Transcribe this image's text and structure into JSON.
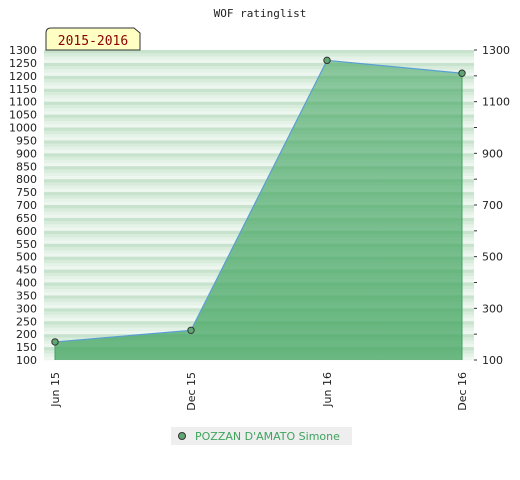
{
  "chart_data": {
    "type": "area",
    "title": "WOF ratinglist",
    "season_label": "2015-2016",
    "categories": [
      "Jun 15",
      "Dec 15",
      "Jun 16",
      "Dec 16"
    ],
    "series": [
      {
        "name": "POZZAN D'AMATO Simone",
        "values": [
          170,
          215,
          1260,
          1210
        ]
      }
    ],
    "ylim": [
      100,
      1300
    ],
    "left_ticks": [
      100,
      150,
      200,
      250,
      300,
      350,
      400,
      450,
      500,
      550,
      600,
      650,
      700,
      750,
      800,
      850,
      900,
      950,
      1000,
      1050,
      1100,
      1150,
      1200,
      1250,
      1300
    ],
    "right_ticks": [
      100,
      300,
      500,
      700,
      900,
      1100,
      1300
    ],
    "legend_position": "bottom-center",
    "grid": true
  },
  "colors": {
    "line": "#5a9fd4",
    "marker_fill": "#5fa873",
    "area": "#3fa35e",
    "stripe_dark": "#c7e3cd",
    "stripe_light": "#eef6f0",
    "season_fill": "#ffffc4",
    "season_text": "#8b0000"
  }
}
